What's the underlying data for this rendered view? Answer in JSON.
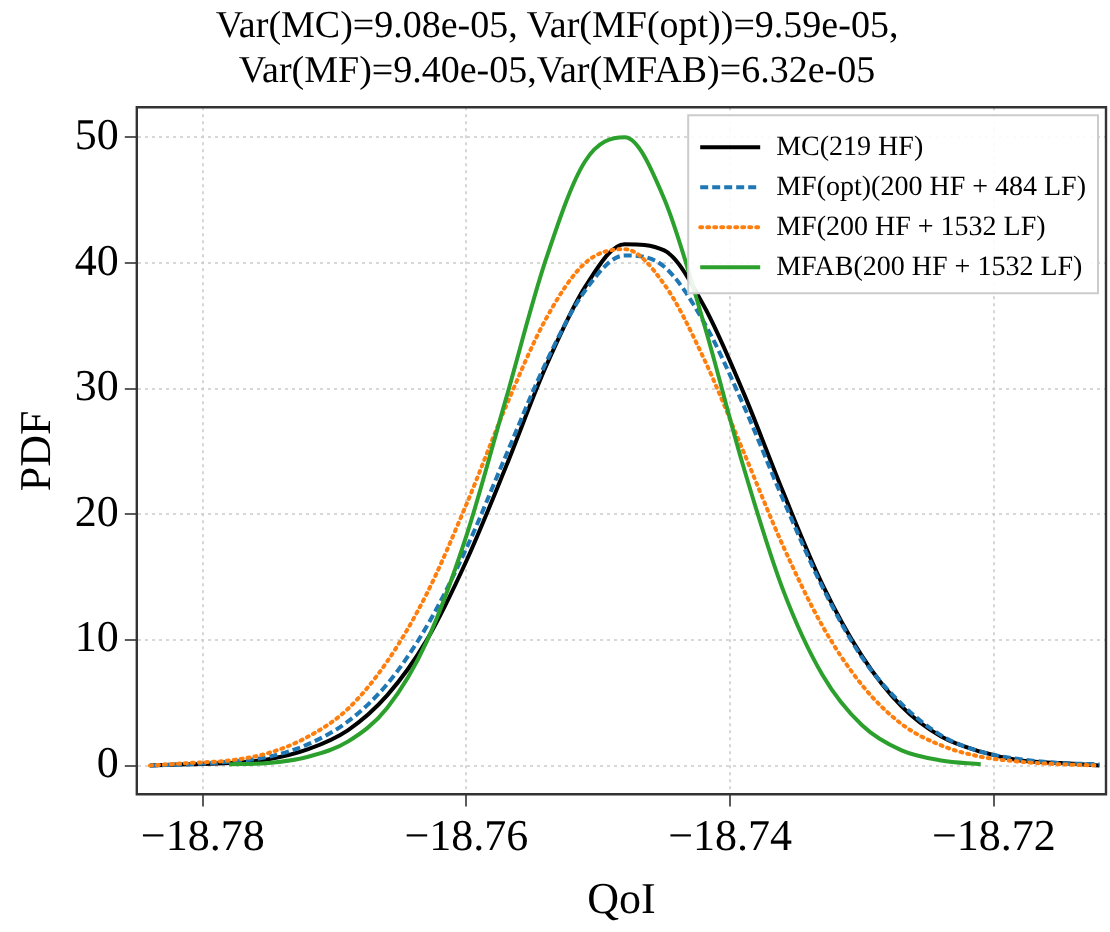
{
  "chart_data": {
    "type": "line",
    "title": "Var(MC)=9.08e-05, Var(MF(opt))=9.59e-05,\nVar(MF)=9.40e-05,Var(MFAB)=6.32e-05",
    "xlabel": "QoI",
    "ylabel": "PDF",
    "x": [
      -18.784,
      -18.781,
      -18.778,
      -18.775,
      -18.772,
      -18.769,
      -18.766,
      -18.763,
      -18.76,
      -18.757,
      -18.754,
      -18.751,
      -18.748,
      -18.745,
      -18.742,
      -18.739,
      -18.736,
      -18.733,
      -18.73,
      -18.727,
      -18.724,
      -18.721,
      -18.718,
      -18.715,
      -18.712
    ],
    "series": [
      {
        "name": "MC(219 HF)",
        "color": "#000000",
        "line_style": "solid",
        "values": [
          0,
          0.1,
          0.2,
          0.5,
          1.3,
          2.8,
          5.6,
          10.0,
          16.3,
          23.8,
          31.7,
          38.1,
          41.5,
          41.0,
          36.6,
          29.7,
          21.8,
          14.4,
          8.7,
          4.7,
          2.3,
          1.1,
          0.4,
          0.2,
          0
        ]
      },
      {
        "name": "MF(opt)(200 HF + 484 LF)",
        "color": "#1f77b4",
        "line_style": "dashed",
        "values": [
          0,
          0.1,
          0.3,
          0.7,
          1.7,
          3.5,
          6.5,
          11.1,
          17.3,
          24.7,
          32.0,
          37.8,
          40.6,
          39.7,
          35.3,
          28.7,
          21.2,
          14.2,
          8.6,
          4.9,
          2.4,
          1.1,
          0.5,
          0.2,
          0.1
        ]
      },
      {
        "name": "MF(200 HF + 1532 LF)",
        "color": "#ff7f0e",
        "line_style": "dotted",
        "values": [
          0,
          0.2,
          0.4,
          1.0,
          2.3,
          4.5,
          8.3,
          13.7,
          20.8,
          28.6,
          35.5,
          40.0,
          41.1,
          38.3,
          32.4,
          25.0,
          17.5,
          11.1,
          6.4,
          3.3,
          1.6,
          0.7,
          0.3,
          0.1,
          0
        ]
      },
      {
        "name": "MFAB(200 HF + 1532 LF)",
        "color": "#2ca02c",
        "line_style": "solid",
        "x": [
          -18.778,
          -18.775,
          -18.772,
          -18.769,
          -18.766,
          -18.763,
          -18.76,
          -18.757,
          -18.754,
          -18.751,
          -18.748,
          -18.745,
          -18.742,
          -18.739,
          -18.736,
          -18.733,
          -18.73,
          -18.727,
          -18.724,
          -18.721
        ],
        "values": [
          0.1,
          0.2,
          0.7,
          1.9,
          4.6,
          9.9,
          18.3,
          29.2,
          40.2,
          48.1,
          50.0,
          45.1,
          35.2,
          23.8,
          14.0,
          7.2,
          3.2,
          1.2,
          0.4,
          0.1
        ]
      }
    ],
    "xlim": [
      -18.785,
      -18.7115
    ],
    "ylim": [
      -2.3,
      52.4
    ],
    "xticks": [
      {
        "value": -18.78,
        "label": "−18.78"
      },
      {
        "value": -18.76,
        "label": "−18.76"
      },
      {
        "value": -18.74,
        "label": "−18.74"
      },
      {
        "value": -18.72,
        "label": "−18.72"
      }
    ],
    "yticks": [
      0,
      10,
      20,
      30,
      40,
      50
    ],
    "grid": true,
    "legend": "top right",
    "marker": "none"
  }
}
